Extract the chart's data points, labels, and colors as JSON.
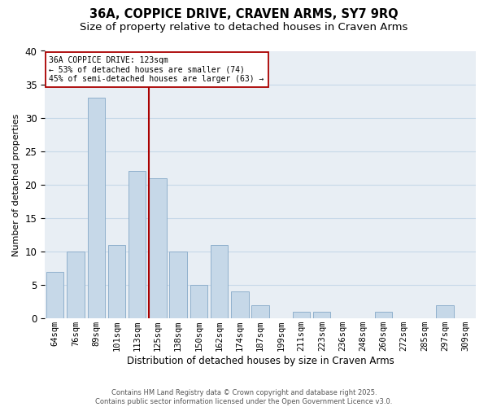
{
  "title": "36A, COPPICE DRIVE, CRAVEN ARMS, SY7 9RQ",
  "subtitle": "Size of property relative to detached houses in Craven Arms",
  "xlabel": "Distribution of detached houses by size in Craven Arms",
  "ylabel": "Number of detached properties",
  "bar_labels": [
    "64sqm",
    "76sqm",
    "89sqm",
    "101sqm",
    "113sqm",
    "125sqm",
    "138sqm",
    "150sqm",
    "162sqm",
    "174sqm",
    "187sqm",
    "199sqm",
    "211sqm",
    "223sqm",
    "236sqm",
    "248sqm",
    "260sqm",
    "272sqm",
    "285sqm",
    "297sqm",
    "309sqm"
  ],
  "bar_values": [
    7,
    10,
    33,
    11,
    22,
    21,
    10,
    5,
    11,
    4,
    2,
    0,
    1,
    1,
    0,
    0,
    1,
    0,
    0,
    2,
    0
  ],
  "bar_color": "#c6d8e8",
  "bar_edge_color": "#8fb0cc",
  "vline_index": 5,
  "vline_color": "#aa0000",
  "ylim": [
    0,
    40
  ],
  "yticks": [
    0,
    5,
    10,
    15,
    20,
    25,
    30,
    35,
    40
  ],
  "annotation_title": "36A COPPICE DRIVE: 123sqm",
  "annotation_line1": "← 53% of detached houses are smaller (74)",
  "annotation_line2": "45% of semi-detached houses are larger (63) →",
  "annotation_box_color": "#ffffff",
  "annotation_box_edge": "#aa0000",
  "grid_color": "#c6d8e8",
  "background_color": "#e8eef4",
  "footer_line1": "Contains HM Land Registry data © Crown copyright and database right 2025.",
  "footer_line2": "Contains public sector information licensed under the Open Government Licence v3.0.",
  "title_fontsize": 10.5,
  "subtitle_fontsize": 9.5,
  "ylabel_fontsize": 8,
  "xlabel_fontsize": 8.5,
  "tick_fontsize": 7.5,
  "footer_fontsize": 6
}
